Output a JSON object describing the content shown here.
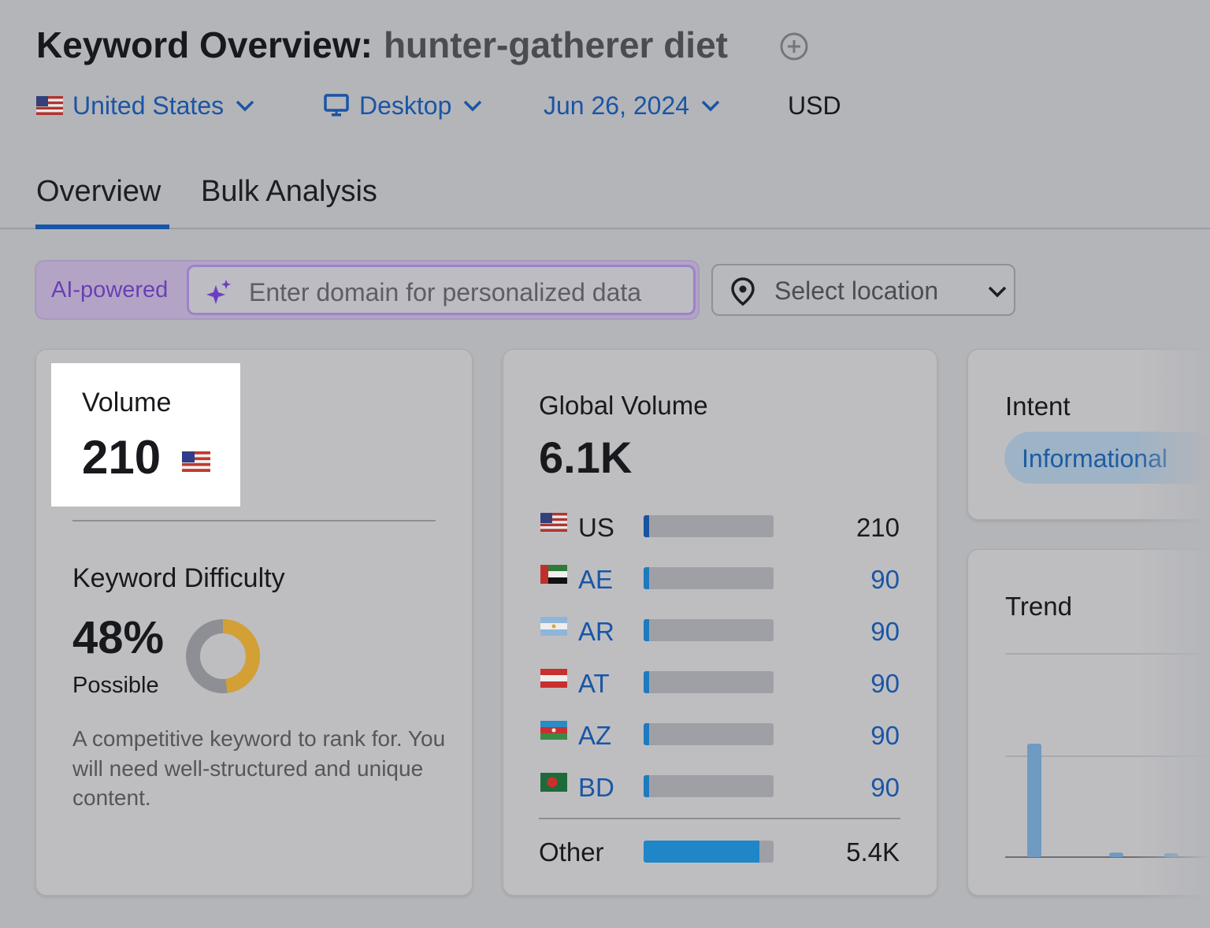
{
  "header": {
    "title": "Keyword Overview:",
    "keyword": "hunter-gatherer diet",
    "add_icon": "plus-circle-icon"
  },
  "filters": {
    "country": "United States",
    "device": "Desktop",
    "date": "Jun 26, 2024",
    "currency": "USD"
  },
  "tabs": [
    {
      "label": "Overview",
      "active": true
    },
    {
      "label": "Bulk Analysis",
      "active": false
    }
  ],
  "ai_search": {
    "badge": "AI-powered",
    "placeholder": "Enter domain for personalized data"
  },
  "location": {
    "placeholder": "Select location"
  },
  "volume": {
    "label": "Volume",
    "value": "210"
  },
  "keyword_difficulty": {
    "label": "Keyword Difficulty",
    "value": "48%",
    "percent": 48,
    "level": "Possible",
    "description": "A competitive keyword to rank for. You will need well-structured and unique content.",
    "color": "#d3a035"
  },
  "global_volume": {
    "label": "Global Volume",
    "value": "6.1K",
    "rows": [
      {
        "code": "US",
        "value": "210",
        "fraction": 0.035
      },
      {
        "code": "AE",
        "value": "90",
        "fraction": 0.015
      },
      {
        "code": "AR",
        "value": "90",
        "fraction": 0.015
      },
      {
        "code": "AT",
        "value": "90",
        "fraction": 0.015
      },
      {
        "code": "AZ",
        "value": "90",
        "fraction": 0.015
      },
      {
        "code": "BD",
        "value": "90",
        "fraction": 0.015
      }
    ],
    "other": {
      "label": "Other",
      "value": "5.4K",
      "fraction": 0.89
    }
  },
  "intent": {
    "label": "Intent",
    "value": "Informational"
  },
  "trend": {
    "label": "Trend",
    "bars": [
      1.0,
      0.04,
      0.03
    ]
  }
}
